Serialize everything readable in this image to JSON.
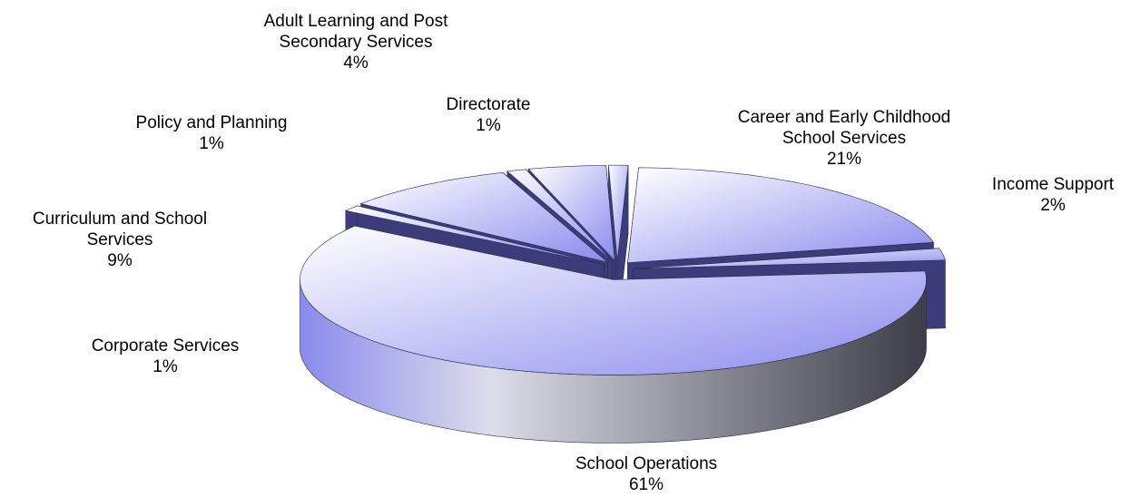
{
  "chart_data": {
    "type": "pie",
    "categories": [
      "Career and Early Childhood School Services",
      "Income Support",
      "School Operations",
      "Corporate Services",
      "Curriculum and School Services",
      "Policy and Planning",
      "Adult Learning and Post Secondary Services",
      "Directorate"
    ],
    "values": [
      21,
      2,
      61,
      1,
      9,
      1,
      4,
      1
    ],
    "value_labels": [
      "21%",
      "2%",
      "61%",
      "1%",
      "9%",
      "1%",
      "4%",
      "1%"
    ],
    "color": "#8a8aee"
  }
}
